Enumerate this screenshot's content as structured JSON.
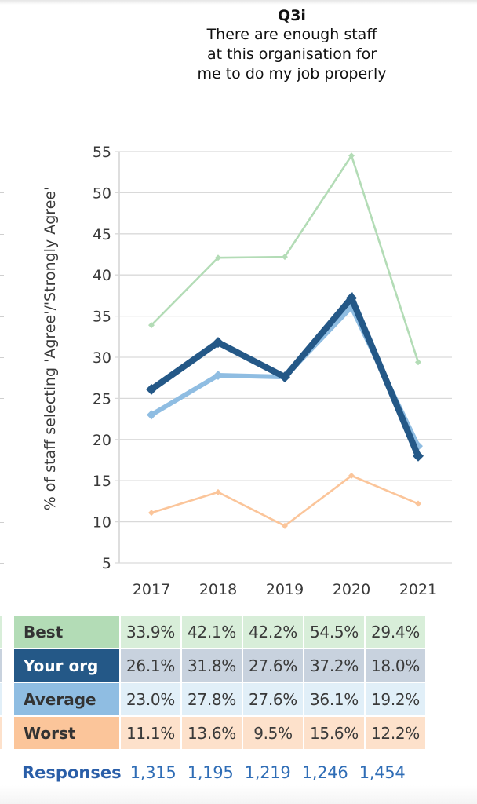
{
  "header": {
    "question_id": "Q3i",
    "question_lines": [
      "There are enough staff",
      "at this organisation for",
      "me to do my job properly"
    ]
  },
  "chart_data": {
    "type": "line",
    "title": "Q3i There are enough staff at this organisation for me to do my job properly",
    "xlabel": "",
    "ylabel": "% of staff selecting 'Agree'/'Strongly Agree'",
    "categories": [
      "2017",
      "2018",
      "2019",
      "2020",
      "2021"
    ],
    "ylim": [
      5,
      55
    ],
    "yticks": [
      5,
      10,
      15,
      20,
      25,
      30,
      35,
      40,
      45,
      50,
      55
    ],
    "grid": true,
    "legend": "table-below",
    "series": [
      {
        "name": "Best",
        "values": [
          33.9,
          42.1,
          42.2,
          54.5,
          29.4
        ],
        "color": "#b3dcb6",
        "weight": "thin"
      },
      {
        "name": "Your org",
        "values": [
          26.1,
          31.8,
          27.6,
          37.2,
          18.0
        ],
        "color": "#245887",
        "weight": "heavy"
      },
      {
        "name": "Average",
        "values": [
          23.0,
          27.8,
          27.6,
          36.1,
          19.2
        ],
        "color": "#8fbde2",
        "weight": "medium"
      },
      {
        "name": "Worst",
        "values": [
          11.1,
          13.6,
          9.5,
          15.6,
          12.2
        ],
        "color": "#fbc59a",
        "weight": "thin"
      }
    ]
  },
  "table": {
    "rows": [
      {
        "label": "Best",
        "values": [
          "33.9%",
          "42.1%",
          "42.2%",
          "54.5%",
          "29.4%"
        ],
        "label_bg": "#b3dcb6",
        "label_color": "#333333",
        "cell_bg": "#d8eed9"
      },
      {
        "label": "Your org",
        "values": [
          "26.1%",
          "31.8%",
          "27.6%",
          "37.2%",
          "18.0%"
        ],
        "label_bg": "#245887",
        "label_color": "#ffffff",
        "cell_bg": "#c8d2de"
      },
      {
        "label": "Average",
        "values": [
          "23.0%",
          "27.8%",
          "27.6%",
          "36.1%",
          "19.2%"
        ],
        "label_bg": "#8fbde2",
        "label_color": "#333333",
        "cell_bg": "#e1eff8"
      },
      {
        "label": "Worst",
        "values": [
          "11.1%",
          "13.6%",
          "9.5%",
          "15.6%",
          "12.2%"
        ],
        "label_bg": "#fbc59a",
        "label_color": "#333333",
        "cell_bg": "#fde1cb"
      }
    ]
  },
  "responses": {
    "label": "Responses",
    "values": [
      "1,315",
      "1,195",
      "1,219",
      "1,246",
      "1,454"
    ]
  }
}
